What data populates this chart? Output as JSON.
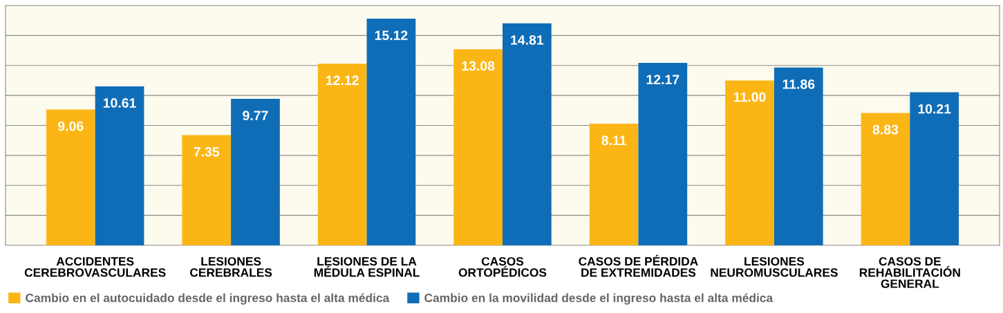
{
  "chart_data": {
    "type": "bar",
    "categories": [
      "ACCIDENTES\nCEREBROVASCULARES",
      "LESIONES\nCEREBRALES",
      "LESIONES DE LA\nMÉDULA ESPINAL",
      "CASOS\nORTOPÉDICOS",
      "CASOS DE PÉRDIDA\nDE EXTREMIDADES",
      "LESIONES\nNEUROMUSCULARES",
      "CASOS DE\nREHABILITACIÓN\nGENERAL"
    ],
    "series": [
      {
        "name": "Cambio en el autocuidado desde el ingreso hasta el alta médica",
        "color": "#fbb616",
        "values": [
          9.06,
          7.35,
          12.12,
          13.08,
          8.11,
          11.0,
          8.83
        ],
        "value_labels": [
          "9.06",
          "7.35",
          "12.12",
          "13.08",
          "8.11",
          "11.00",
          "8.83"
        ]
      },
      {
        "name": "Cambio en la movilidad desde el ingreso hasta el alta médica",
        "color": "#0f6db7",
        "values": [
          10.61,
          9.77,
          15.12,
          14.81,
          12.17,
          11.86,
          10.21
        ],
        "value_labels": [
          "10.61",
          "9.77",
          "15.12",
          "14.81",
          "12.17",
          "11.86",
          "10.21"
        ]
      }
    ],
    "ylim": [
      0,
      16
    ],
    "yticks": [
      {
        "value": 2,
        "label": null
      },
      {
        "value": 4,
        "label": null
      },
      {
        "value": 6,
        "label": null
      },
      {
        "value": 8,
        "label": null
      },
      {
        "value": 10,
        "label": null
      },
      {
        "value": 12,
        "label": null
      },
      {
        "value": 14,
        "label": null
      }
    ],
    "grid": "y",
    "tick_labels": "x",
    "legend": "bottom left"
  }
}
